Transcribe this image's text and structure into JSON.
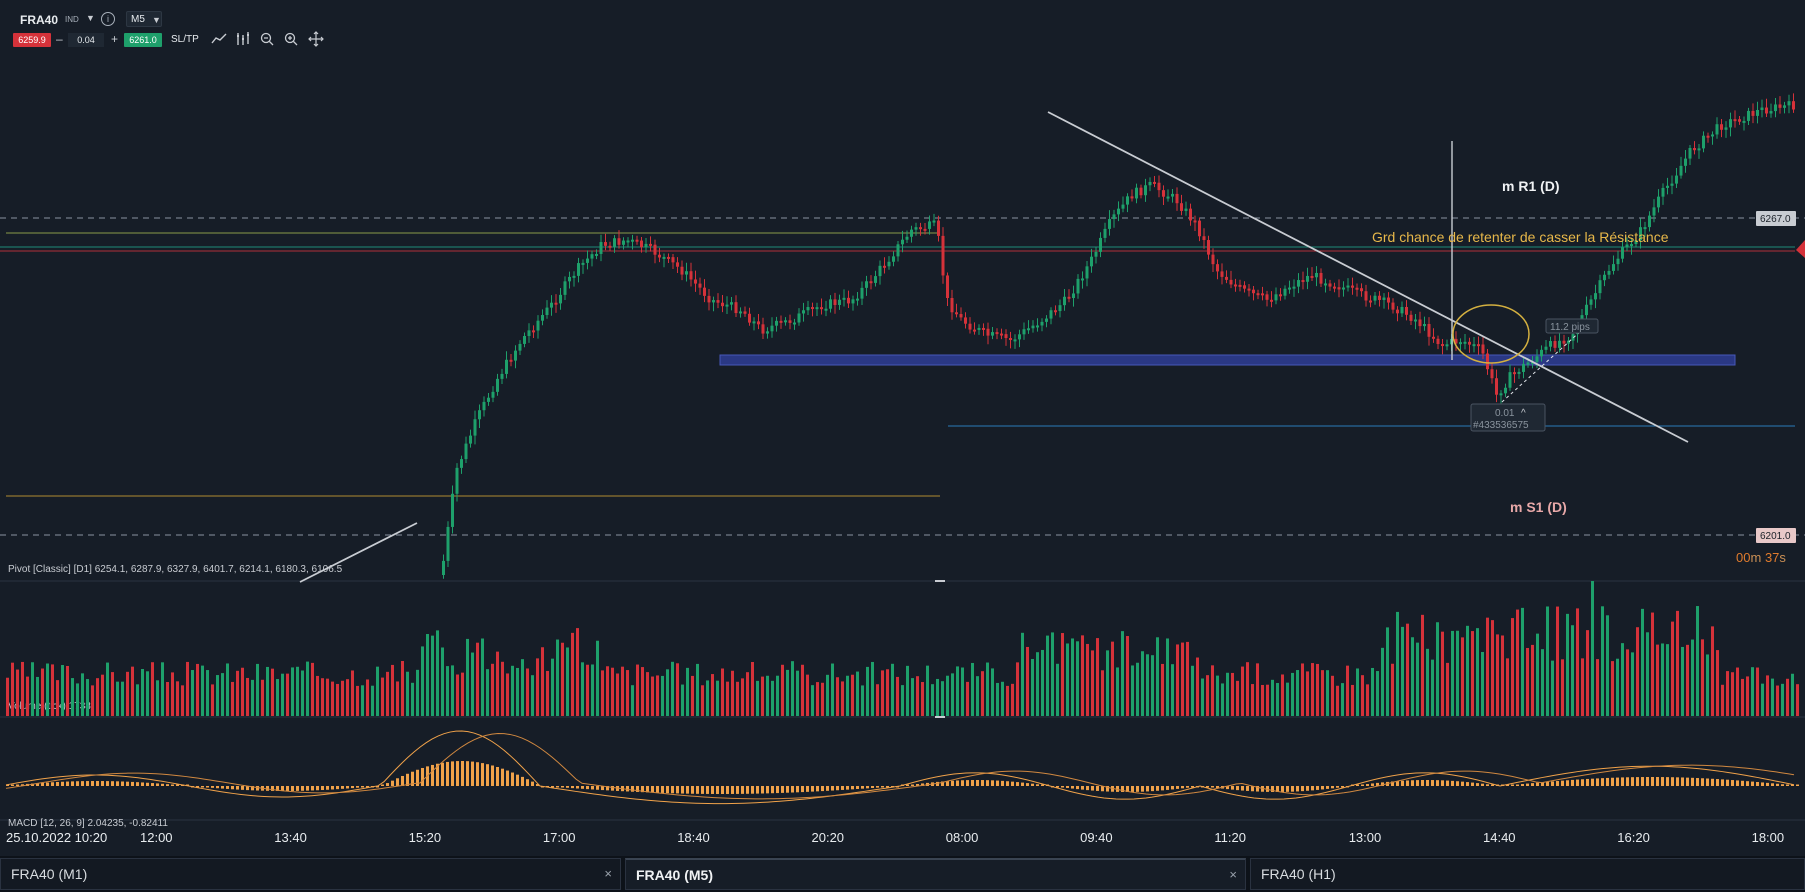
{
  "toolbar": {
    "symbol": "FRA40",
    "category": "IND",
    "timeframe": "M5",
    "sell_price": "6259.9",
    "quantity": "0.04",
    "buy_price": "6261.0",
    "sltp_label": "SL/TP",
    "icons": [
      "info-icon",
      "line-tool-icon",
      "indicators-icon",
      "zoom-out-icon",
      "zoom-in-icon",
      "crosshair-icon"
    ]
  },
  "chart": {
    "annotations": {
      "r1_label": "m R1 (D)",
      "s1_label": "m S1 (D)",
      "note": "Grd chance de retenter de casser la Résistance",
      "pips_label": "11.2 pips",
      "order_qty": "0.01",
      "order_id": "#433536575"
    },
    "price_tags": {
      "upper": "6267.0",
      "lower": "6201.0"
    },
    "timer": {
      "minutes": "00",
      "m": "m",
      "seconds": "37",
      "s": "s"
    },
    "pivot_legend": "Pivot [Classic] [D1] 6254.1, 6287.9, 6327.9, 6401.7, 6214.1, 6180.3, 6106.5",
    "volume_legend": "Volume (tick) 1738",
    "macd_legend": "MACD [12, 26, 9] 2.04235, -0.82411",
    "x_axis": {
      "date_label": "25.10.2022 10:20",
      "ticks": [
        "12:00",
        "13:40",
        "15:20",
        "17:00",
        "18:40",
        "20:20",
        "08:00",
        "09:40",
        "11:20",
        "13:00",
        "14:40",
        "16:20",
        "18:00"
      ]
    },
    "colors": {
      "up": "#1ea06b",
      "down": "#d5323a",
      "macd": "#f0a24a",
      "zone": "#2c3a8a"
    }
  },
  "tabs": [
    {
      "label": "FRA40 (M1)",
      "close": "×"
    },
    {
      "label": "FRA40 (M5)",
      "close": "×"
    },
    {
      "label": "FRA40 (H1)"
    }
  ]
}
